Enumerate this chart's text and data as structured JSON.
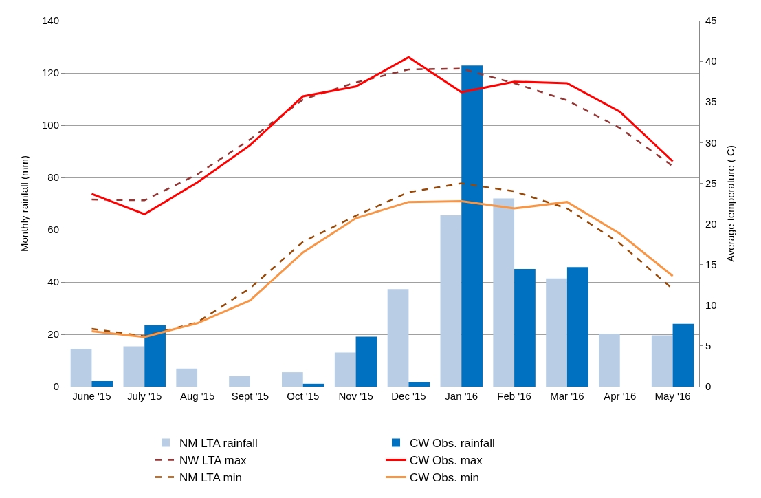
{
  "chart_data": {
    "type": "bar",
    "ylabel": "Monthly rainfall (mm)",
    "y2label": "Average temperature ( C)",
    "categories": [
      "June '15",
      "July '15",
      "Aug '15",
      "Sept '15",
      "Oct '15",
      "Nov '15",
      "Dec '15",
      "Jan '16",
      "Feb '16",
      "Mar '16",
      "Apr '16",
      "May '16"
    ],
    "series": [
      {
        "name": "NM LTA rainfall",
        "color": "#b9cde5",
        "values": [
          14.4,
          15.4,
          6.9,
          4.0,
          5.5,
          13.0,
          37.3,
          65.5,
          72.0,
          41.4,
          20.2,
          19.6
        ]
      },
      {
        "name": "CW Obs. rainfall",
        "color": "#0070c0",
        "values": [
          2.1,
          23.5,
          null,
          null,
          1.1,
          19.1,
          1.7,
          122.8,
          45.0,
          45.7,
          null,
          24.0
        ]
      },
      {
        "name": "NW LTA max",
        "type": "line",
        "axis": "y2",
        "line_style": "dashed",
        "color": "#943634",
        "values": [
          23.0,
          22.9,
          26.1,
          30.4,
          35.3,
          37.4,
          39.0,
          39.1,
          37.3,
          35.2,
          31.8,
          27.1
        ]
      },
      {
        "name": "CW Obs. max",
        "type": "line",
        "axis": "y2",
        "line_style": "solid",
        "color": "#ff0000",
        "values": [
          23.7,
          21.2,
          25.1,
          29.7,
          35.7,
          36.9,
          40.5,
          36.2,
          37.5,
          37.3,
          33.8,
          27.7
        ]
      },
      {
        "name": "NM LTA min",
        "type": "line",
        "axis": "y2",
        "line_style": "dashed",
        "color": "#984807",
        "values": [
          7.1,
          6.2,
          7.9,
          12.1,
          17.8,
          21.0,
          23.9,
          25.0,
          24.0,
          21.9,
          17.6,
          12.0
        ]
      },
      {
        "name": "CW Obs. min",
        "type": "line",
        "axis": "y2",
        "line_style": "solid",
        "color": "#f79646",
        "values": [
          6.8,
          6.1,
          7.8,
          10.6,
          16.5,
          20.7,
          22.7,
          22.8,
          21.9,
          22.7,
          18.8,
          13.6
        ]
      }
    ],
    "ylim": [
      0,
      140
    ],
    "yticks": [
      0,
      20,
      40,
      60,
      80,
      100,
      120,
      140
    ],
    "y2lim": [
      0,
      45
    ],
    "y2ticks": [
      0,
      5,
      10,
      15,
      20,
      25,
      30,
      35,
      40,
      45
    ],
    "grid": "y",
    "legend": "bottom",
    "marker": "none"
  }
}
